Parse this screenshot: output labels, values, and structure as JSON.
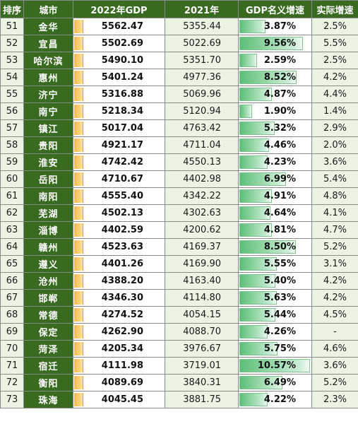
{
  "table": {
    "headers": [
      "排序",
      "城市",
      "2022年GDP",
      "2021年",
      "GDP名义增速",
      "实际增速"
    ]
  },
  "chart_data": {
    "type": "table",
    "columns": [
      "排序",
      "城市",
      "2022年GDP",
      "2021年",
      "GDP名义增速",
      "实际增速"
    ],
    "nominal_growth_bar_scale_max": 10.57,
    "rows": [
      {
        "rank": "51",
        "city": "金华",
        "gdp2022": "5562.47",
        "gdp2021": "5355.44",
        "nominal": "3.87%",
        "nominal_value": 3.87,
        "real": "2.5%"
      },
      {
        "rank": "52",
        "city": "宜昌",
        "gdp2022": "5502.69",
        "gdp2021": "5022.69",
        "nominal": "9.56%",
        "nominal_value": 9.56,
        "real": "5.5%"
      },
      {
        "rank": "53",
        "city": "哈尔滨",
        "gdp2022": "5490.10",
        "gdp2021": "5351.70",
        "nominal": "2.59%",
        "nominal_value": 2.59,
        "real": "2.5%"
      },
      {
        "rank": "54",
        "city": "惠州",
        "gdp2022": "5401.24",
        "gdp2021": "4977.36",
        "nominal": "8.52%",
        "nominal_value": 8.52,
        "real": "4.2%"
      },
      {
        "rank": "55",
        "city": "济宁",
        "gdp2022": "5316.88",
        "gdp2021": "5069.96",
        "nominal": "4.87%",
        "nominal_value": 4.87,
        "real": "4.4%"
      },
      {
        "rank": "56",
        "city": "南宁",
        "gdp2022": "5218.34",
        "gdp2021": "5120.94",
        "nominal": "1.90%",
        "nominal_value": 1.9,
        "real": "1.4%"
      },
      {
        "rank": "57",
        "city": "镇江",
        "gdp2022": "5017.04",
        "gdp2021": "4763.42",
        "nominal": "5.32%",
        "nominal_value": 5.32,
        "real": "2.9%"
      },
      {
        "rank": "58",
        "city": "贵阳",
        "gdp2022": "4921.17",
        "gdp2021": "4711.04",
        "nominal": "4.46%",
        "nominal_value": 4.46,
        "real": "2.0%"
      },
      {
        "rank": "59",
        "city": "淮安",
        "gdp2022": "4742.42",
        "gdp2021": "4550.13",
        "nominal": "4.23%",
        "nominal_value": 4.23,
        "real": "3.6%"
      },
      {
        "rank": "60",
        "city": "岳阳",
        "gdp2022": "4710.67",
        "gdp2021": "4402.98",
        "nominal": "6.99%",
        "nominal_value": 6.99,
        "real": "5.4%"
      },
      {
        "rank": "61",
        "city": "南阳",
        "gdp2022": "4555.40",
        "gdp2021": "4342.22",
        "nominal": "4.91%",
        "nominal_value": 4.91,
        "real": "4.8%"
      },
      {
        "rank": "62",
        "city": "芜湖",
        "gdp2022": "4502.13",
        "gdp2021": "4302.63",
        "nominal": "4.64%",
        "nominal_value": 4.64,
        "real": "4.1%"
      },
      {
        "rank": "63",
        "city": "淄博",
        "gdp2022": "4402.59",
        "gdp2021": "4200.62",
        "nominal": "4.81%",
        "nominal_value": 4.81,
        "real": "4.7%"
      },
      {
        "rank": "64",
        "city": "赣州",
        "gdp2022": "4523.63",
        "gdp2021": "4169.37",
        "nominal": "8.50%",
        "nominal_value": 8.5,
        "real": "5.2%"
      },
      {
        "rank": "65",
        "city": "遵义",
        "gdp2022": "4401.26",
        "gdp2021": "4169.90",
        "nominal": "5.55%",
        "nominal_value": 5.55,
        "real": "3.1%"
      },
      {
        "rank": "66",
        "city": "沧州",
        "gdp2022": "4388.20",
        "gdp2021": "4163.40",
        "nominal": "5.40%",
        "nominal_value": 5.4,
        "real": "4.2%"
      },
      {
        "rank": "67",
        "city": "邯郸",
        "gdp2022": "4346.30",
        "gdp2021": "4114.80",
        "nominal": "5.63%",
        "nominal_value": 5.63,
        "real": "4.2%"
      },
      {
        "rank": "68",
        "city": "常德",
        "gdp2022": "4274.52",
        "gdp2021": "4054.15",
        "nominal": "5.44%",
        "nominal_value": 5.44,
        "real": "4.5%"
      },
      {
        "rank": "69",
        "city": "保定",
        "gdp2022": "4262.90",
        "gdp2021": "4088.70",
        "nominal": "4.26%",
        "nominal_value": 4.26,
        "real": "-"
      },
      {
        "rank": "70",
        "city": "菏泽",
        "gdp2022": "4205.34",
        "gdp2021": "3976.67",
        "nominal": "5.75%",
        "nominal_value": 5.75,
        "real": "4.6%"
      },
      {
        "rank": "71",
        "city": "宿迁",
        "gdp2022": "4111.98",
        "gdp2021": "3719.01",
        "nominal": "10.57%",
        "nominal_value": 10.57,
        "real": "3.6%"
      },
      {
        "rank": "72",
        "city": "衡阳",
        "gdp2022": "4089.69",
        "gdp2021": "3840.31",
        "nominal": "6.49%",
        "nominal_value": 6.49,
        "real": "5.2%"
      },
      {
        "rank": "73",
        "city": "珠海",
        "gdp2022": "4045.45",
        "gdp2021": "3881.75",
        "nominal": "4.22%",
        "nominal_value": 4.22,
        "real": "2.3%"
      }
    ]
  }
}
